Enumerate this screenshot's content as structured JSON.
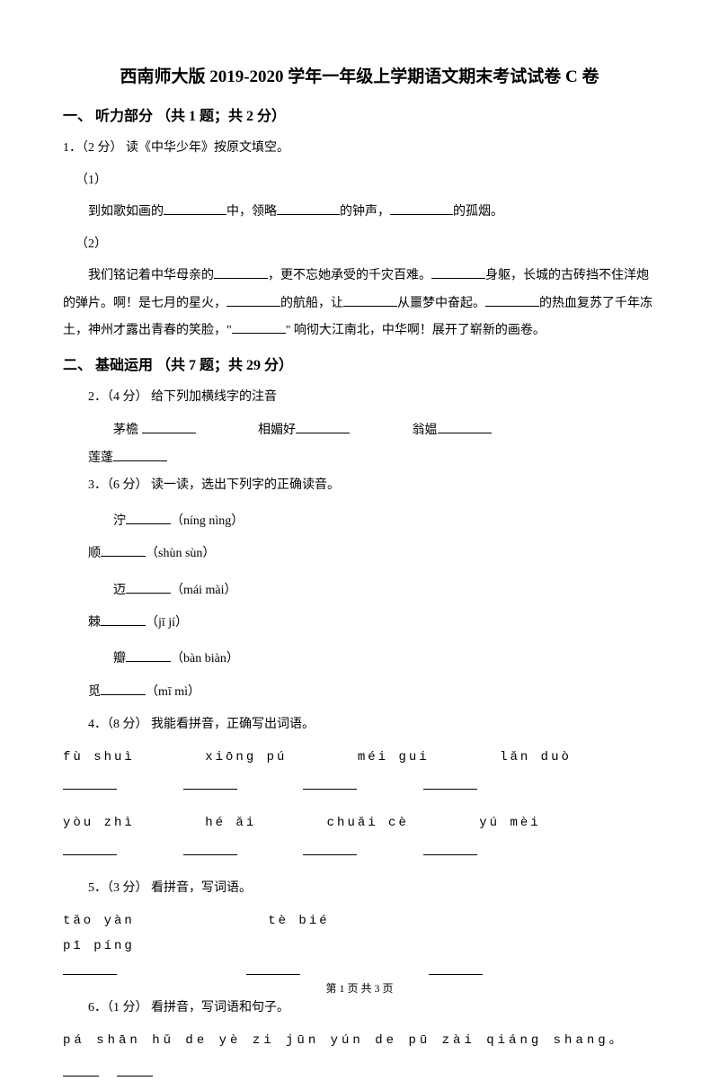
{
  "title": "西南师大版 2019-2020 学年一年级上学期语文期末考试试卷 C 卷",
  "section1": {
    "header": "一、 听力部分 （共 1 题；共 2 分）",
    "q1": {
      "prefix": "1．（2 分） 读《中华少年》按原文填空。",
      "sub1_label": "（1）",
      "sub1_text_a": "到如歌如画的",
      "sub1_text_b": "中，领略",
      "sub1_text_c": "的钟声，",
      "sub1_text_d": "的孤烟。",
      "sub2_label": "（2）",
      "sub2_text_a": "我们铭记着中华母亲的",
      "sub2_text_b": "，更不忘她承受的千灾百难。",
      "sub2_text_c": "身躯，长城的古砖挡不住洋炮的弹片。啊！是七月的星火，",
      "sub2_text_d": "的航船，让",
      "sub2_text_e": "从噩梦中奋起。",
      "sub2_text_f": "的热血复苏了千年冻土，神州才露出青春的笑脸，\"",
      "sub2_text_g": "\" 响彻大江南北，中华啊！展开了崭新的画卷。"
    }
  },
  "section2": {
    "header": "二、 基础运用 （共 7 题；共 29 分）",
    "q2": {
      "prefix": "2．（4 分） 给下列加横线字的注音",
      "items": [
        "茅檐",
        "相媚好",
        "翁媪",
        "莲蓬"
      ]
    },
    "q3": {
      "prefix": "3．（6 分） 读一读，选出下列字的正确读音。",
      "rows": [
        {
          "a_char": "泞",
          "a_opt": "（níng  nìng）",
          "b_char": "顺",
          "b_opt": "（shùn  sùn）"
        },
        {
          "a_char": "迈",
          "a_opt": "（mái  mài）",
          "b_char": "棘",
          "b_opt": "（jī  jí）"
        },
        {
          "a_char": "瓣",
          "a_opt": "（bàn  biàn）",
          "b_char": "觅",
          "b_opt": "（mī  mì）"
        }
      ]
    },
    "q4": {
      "prefix": "4．（8 分） 我能看拼音，正确写出词语。",
      "row1": [
        "fù  shuì",
        "xiōng  pú",
        "méi  gui",
        "lǎn  duò"
      ],
      "row2": [
        "yòu  zhì",
        "hé  ǎi",
        "chuǎi  cè",
        "yú  mèi"
      ]
    },
    "q5": {
      "prefix": "5．（3 分） 看拼音，写词语。",
      "items": [
        "tǎo  yàn",
        "tè  bié",
        "pī  píng"
      ]
    },
    "q6": {
      "prefix": "6．（1 分） 看拼音，写词语和句子。",
      "pinyin": "pá  shān  hǔ  de  yè  zi  jūn  yún  de  pū  zài  qiáng  shang。"
    }
  },
  "footer": "第 1 页 共 3 页"
}
